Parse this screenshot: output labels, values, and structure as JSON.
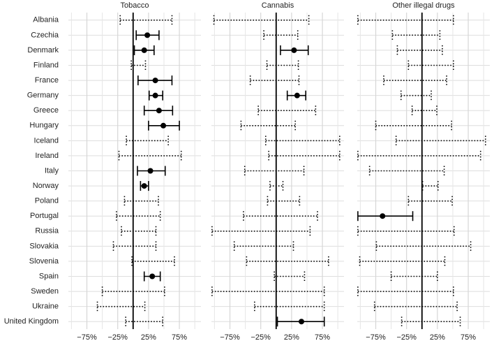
{
  "chart_data": {
    "type": "forest",
    "categories": [
      "Albania",
      "Czechia",
      "Denmark",
      "Finland",
      "France",
      "Germany",
      "Greece",
      "Hungary",
      "Iceland",
      "Ireland",
      "Italy",
      "Norway",
      "Poland",
      "Portugal",
      "Russia",
      "Slovakia",
      "Slovenia",
      "Spain",
      "Sweden",
      "Ukraine",
      "United Kingdom"
    ],
    "series": [
      {
        "name": "Tobacco",
        "lower": [
          -21,
          5,
          2,
          -3,
          8,
          26,
          18,
          25,
          -11,
          -23,
          7,
          12,
          -14,
          -27,
          -19,
          -32,
          -2,
          18,
          -50,
          -58,
          -12
        ],
        "estimate": [
          null,
          23,
          18,
          null,
          36,
          36,
          42,
          49,
          null,
          null,
          28,
          18,
          null,
          null,
          null,
          null,
          null,
          31,
          null,
          null,
          null
        ],
        "upper": [
          63,
          42,
          34,
          20,
          63,
          48,
          64,
          75,
          57,
          78,
          52,
          25,
          41,
          44,
          37,
          37,
          67,
          44,
          51,
          19,
          48
        ]
      },
      {
        "name": "Cannabis",
        "lower": [
          -101,
          -20,
          7,
          -15,
          -42,
          18,
          -29,
          -57,
          -17,
          -12,
          -51,
          -10,
          -14,
          -53,
          -104,
          -68,
          -48,
          -3,
          -104,
          -35,
          2
        ],
        "estimate": [
          null,
          null,
          29,
          null,
          null,
          34,
          null,
          null,
          null,
          null,
          null,
          null,
          null,
          null,
          null,
          null,
          null,
          null,
          null,
          null,
          41
        ],
        "upper": [
          53,
          35,
          52,
          36,
          37,
          48,
          64,
          31,
          103,
          103,
          45,
          11,
          38,
          67,
          55,
          28,
          85,
          46,
          78,
          78,
          78
        ]
      },
      {
        "name": "Other illegal drugs",
        "lower": [
          -104,
          -48,
          -40,
          -22,
          -62,
          -34,
          -16,
          -75,
          -42,
          -104,
          -85,
          1,
          -22,
          -104,
          -104,
          -74,
          -101,
          -50,
          -104,
          -77,
          -33
        ],
        "estimate": [
          null,
          null,
          null,
          null,
          null,
          null,
          null,
          null,
          null,
          null,
          null,
          null,
          null,
          -64,
          null,
          null,
          null,
          null,
          null,
          null,
          null
        ],
        "upper": [
          51,
          29,
          33,
          51,
          40,
          15,
          24,
          48,
          103,
          95,
          36,
          26,
          49,
          -15,
          52,
          79,
          37,
          25,
          51,
          57,
          62
        ]
      }
    ],
    "xlim": [
      -105,
      110
    ],
    "xticks": [
      {
        "value": -75,
        "label": "−75%"
      },
      {
        "value": -25,
        "label": "−25%"
      },
      {
        "value": 25,
        "label": "25%"
      },
      {
        "value": 75,
        "label": "75%"
      }
    ],
    "minor_gridlines": [
      -100,
      -50,
      0,
      50,
      100
    ],
    "reference_line": 0,
    "grid": true
  }
}
